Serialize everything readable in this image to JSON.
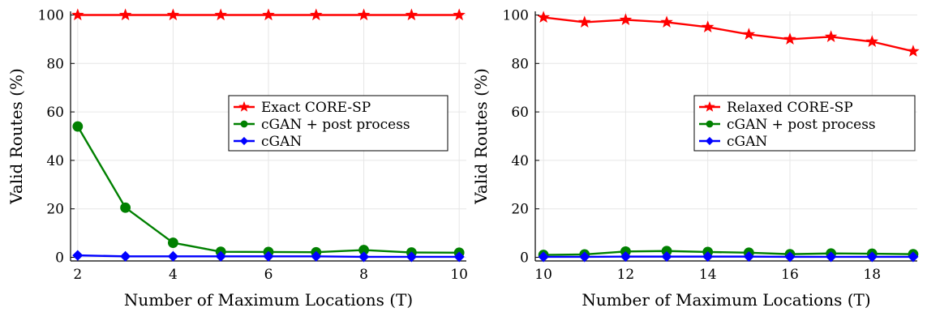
{
  "chart_data": [
    {
      "type": "line",
      "xlabel": "Number of Maximum Locations (T)",
      "ylabel": "Valid Routes (%)",
      "xlim": [
        1.85,
        10.15
      ],
      "ylim": [
        -1.5,
        101.5
      ],
      "xticks": [
        2,
        4,
        6,
        8,
        10
      ],
      "yticks": [
        0,
        20,
        40,
        60,
        80,
        100
      ],
      "x": [
        2,
        3,
        4,
        5,
        6,
        7,
        8,
        9,
        10
      ],
      "grid": true,
      "legend_position": "right",
      "series": [
        {
          "name": "Exact CORE-SP",
          "color": "#ff0000",
          "marker": "star",
          "values": [
            100,
            100,
            100,
            100,
            100,
            100,
            100,
            100,
            100
          ]
        },
        {
          "name": "cGAN + post process",
          "color": "#008000",
          "marker": "circle",
          "values": [
            54,
            20.5,
            6,
            2.3,
            2.2,
            2.1,
            3,
            2,
            1.9
          ]
        },
        {
          "name": "cGAN",
          "color": "#0000ff",
          "marker": "diamond",
          "values": [
            0.8,
            0.4,
            0.4,
            0.4,
            0.4,
            0.4,
            0.2,
            0.2,
            0.2
          ]
        }
      ]
    },
    {
      "type": "line",
      "xlabel": "Number of Maximum Locations (T)",
      "ylabel": "Valid Routes (%)",
      "xlim": [
        9.8,
        19.1
      ],
      "ylim": [
        -1.5,
        101.5
      ],
      "xticks": [
        10,
        12,
        14,
        16,
        18
      ],
      "yticks": [
        0,
        20,
        40,
        60,
        80,
        100
      ],
      "x": [
        10,
        11,
        12,
        13,
        14,
        15,
        16,
        17,
        18,
        19
      ],
      "grid": true,
      "legend_position": "right",
      "series": [
        {
          "name": "Relaxed CORE-SP",
          "color": "#ff0000",
          "marker": "star",
          "values": [
            99,
            97,
            98,
            97,
            95,
            92,
            90,
            91,
            89,
            85
          ]
        },
        {
          "name": "cGAN + post process",
          "color": "#008000",
          "marker": "circle",
          "values": [
            1,
            1.2,
            2.4,
            2.6,
            2.2,
            1.9,
            1.3,
            1.6,
            1.5,
            1.3
          ]
        },
        {
          "name": "cGAN",
          "color": "#0000ff",
          "marker": "diamond",
          "values": [
            0.2,
            0.2,
            0.3,
            0.3,
            0.3,
            0.3,
            0.2,
            0.2,
            0.2,
            0.2
          ]
        }
      ]
    }
  ]
}
